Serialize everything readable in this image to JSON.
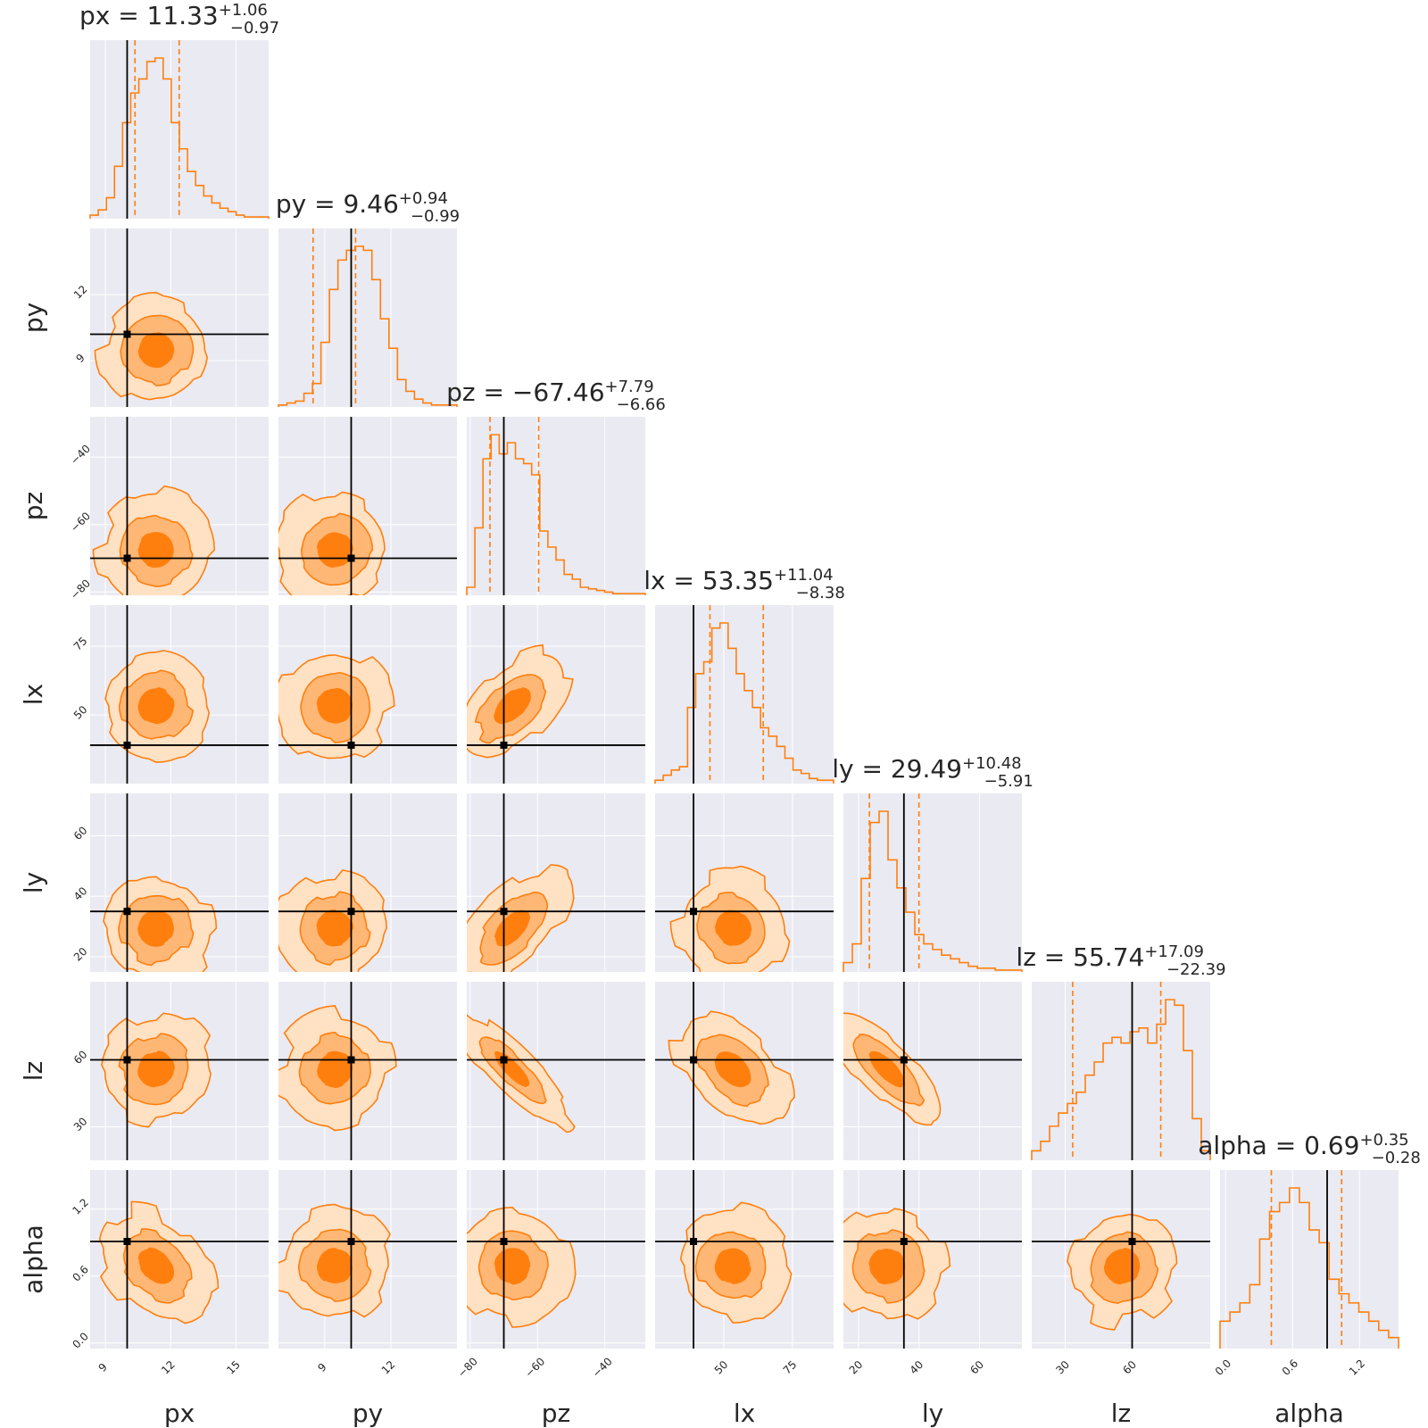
{
  "chart_data": {
    "type": "corner",
    "title": "",
    "colors": {
      "primary": "#ff7f0e",
      "truth": "#000000",
      "panel_bg": "#eaeaf2",
      "grid": "#ffffff"
    },
    "fill_levels": [
      "#ffe1c4",
      "#ffb775",
      "#ff7f0e"
    ],
    "parameters": [
      {
        "name": "px",
        "label": "px",
        "range": [
          8.3,
          16.5
        ],
        "ticks": [
          9,
          12,
          15
        ],
        "tick_labels": [
          "9",
          "12",
          "15"
        ],
        "truth": 10.0,
        "median": 11.33,
        "plus": 1.06,
        "minus": 0.97,
        "title_main": "px = 11.33",
        "title_plus": "+1.06",
        "title_minus": "−0.97",
        "hist": [
          0.02,
          0.05,
          0.12,
          0.3,
          0.55,
          0.72,
          0.8,
          0.9,
          0.92,
          0.8,
          0.55,
          0.4,
          0.27,
          0.19,
          0.13,
          0.09,
          0.06,
          0.04,
          0.02,
          0.01,
          0.01,
          0.01
        ]
      },
      {
        "name": "py",
        "label": "py",
        "range": [
          6.9,
          15.0
        ],
        "ticks": [
          9,
          12
        ],
        "tick_labels": [
          "9",
          "12"
        ],
        "truth": 10.2,
        "median": 9.46,
        "plus": 0.94,
        "minus": 0.99,
        "title_main": "py = 9.46",
        "title_plus": "+0.94",
        "title_minus": "−0.99",
        "hist": [
          0.01,
          0.02,
          0.03,
          0.07,
          0.12,
          0.33,
          0.6,
          0.75,
          0.8,
          0.82,
          0.8,
          0.65,
          0.45,
          0.3,
          0.14,
          0.08,
          0.04,
          0.02,
          0.01,
          0.01,
          0.01
        ]
      },
      {
        "name": "pz",
        "label": "pz",
        "range": [
          -81.0,
          -28.0
        ],
        "ticks": [
          -80,
          -60,
          -40
        ],
        "tick_labels": [
          "−80",
          "−60",
          "−40"
        ],
        "truth": -70.0,
        "median": -67.46,
        "plus": 7.79,
        "minus": 6.66,
        "title_main": "pz = −67.46",
        "title_plus": "+7.79",
        "title_minus": "−6.66",
        "hist": [
          0.05,
          0.42,
          0.85,
          1.0,
          0.88,
          0.95,
          0.85,
          0.82,
          0.75,
          0.4,
          0.3,
          0.22,
          0.13,
          0.1,
          0.05,
          0.04,
          0.03,
          0.02,
          0.01,
          0.01,
          0.01,
          0.01
        ]
      },
      {
        "name": "lx",
        "label": "lx",
        "range": [
          25.0,
          90.0
        ],
        "ticks": [
          50,
          75
        ],
        "tick_labels": [
          "50",
          "75"
        ],
        "truth": 39.0,
        "median": 53.35,
        "plus": 11.04,
        "minus": 8.38,
        "title_main": "lx = 53.35",
        "title_plus": "+11.04",
        "title_minus": "−8.38",
        "hist": [
          0.02,
          0.05,
          0.08,
          0.1,
          0.45,
          0.65,
          0.72,
          0.92,
          0.95,
          0.8,
          0.65,
          0.55,
          0.45,
          0.33,
          0.28,
          0.22,
          0.15,
          0.08,
          0.06,
          0.03,
          0.02,
          0.02
        ]
      },
      {
        "name": "ly",
        "label": "ly",
        "range": [
          15.0,
          74.0
        ],
        "ticks": [
          20,
          40,
          60
        ],
        "tick_labels": [
          "20",
          "40",
          "60"
        ],
        "truth": 35.0,
        "median": 29.49,
        "plus": 10.48,
        "minus": 5.91,
        "title_main": "ly = 29.49",
        "title_plus": "+10.48",
        "title_minus": "−5.91",
        "hist": [
          0.05,
          0.15,
          0.5,
          0.8,
          0.86,
          0.6,
          0.45,
          0.32,
          0.2,
          0.15,
          0.12,
          0.09,
          0.07,
          0.05,
          0.03,
          0.02,
          0.02,
          0.01,
          0.01,
          0.01
        ]
      },
      {
        "name": "lz",
        "label": "lz",
        "range": [
          15.0,
          95.0
        ],
        "ticks": [
          30,
          60
        ],
        "tick_labels": [
          "30",
          "60"
        ],
        "truth": 60.0,
        "median": 55.74,
        "plus": 17.09,
        "minus": 22.39,
        "title_main": "lz = 55.74",
        "title_plus": "+17.09",
        "title_minus": "−22.39",
        "hist": [
          0.05,
          0.1,
          0.18,
          0.25,
          0.3,
          0.36,
          0.45,
          0.52,
          0.62,
          0.65,
          0.62,
          0.68,
          0.7,
          0.62,
          0.72,
          0.85,
          0.82,
          0.58,
          0.22,
          0.05
        ]
      },
      {
        "name": "alpha",
        "label": "alpha",
        "range": [
          -0.05,
          1.55
        ],
        "ticks": [
          0.0,
          0.6,
          1.2
        ],
        "tick_labels": [
          "0.0",
          "0.6",
          "1.2"
        ],
        "truth": 0.91,
        "median": 0.69,
        "plus": 0.35,
        "minus": 0.28,
        "title_main": "alpha = 0.69",
        "title_plus": "+0.35",
        "title_minus": "−0.28",
        "hist": [
          0.15,
          0.2,
          0.25,
          0.35,
          0.6,
          0.75,
          0.8,
          0.88,
          0.8,
          0.65,
          0.58,
          0.38,
          0.3,
          0.25,
          0.2,
          0.15,
          0.1,
          0.06
        ]
      }
    ]
  }
}
